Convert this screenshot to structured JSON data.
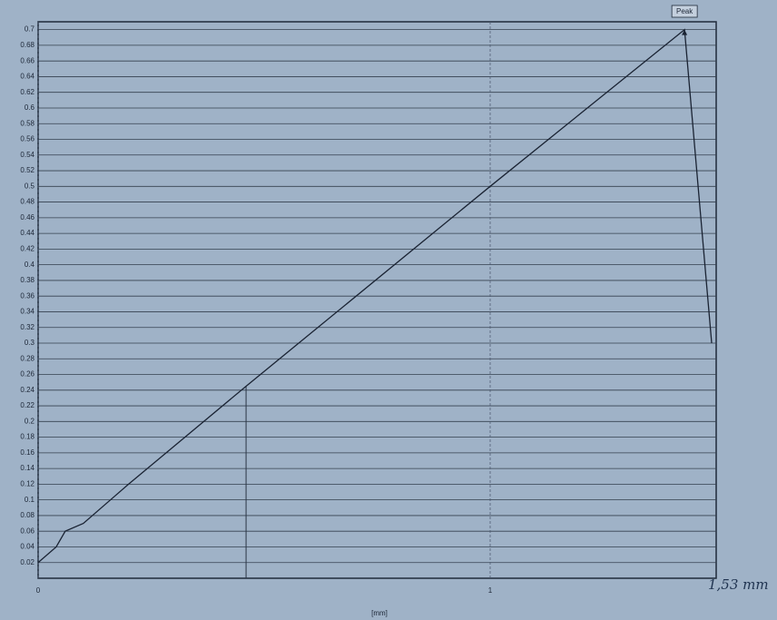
{
  "chart_data": {
    "type": "line",
    "annotations": {
      "peak": "Peak",
      "handwritten": "1,53 mm"
    },
    "x_label": "[mm]",
    "x": [
      0,
      0.04,
      0.06,
      0.1,
      0.2,
      0.46,
      1.0,
      1.43,
      1.49
    ],
    "series": [
      {
        "color": "#1a2333",
        "values": [
          0.02,
          0.04,
          0.06,
          0.07,
          0.12,
          0.245,
          0.5,
          0.7,
          0.3
        ]
      }
    ],
    "vlines": [
      0.46
    ],
    "xlim": [
      0,
      1.5
    ],
    "ylim": [
      0,
      0.71
    ],
    "xticks": [
      0,
      1
    ],
    "yticks": [
      0.02,
      0.04,
      0.06,
      0.08,
      0.1,
      0.12,
      0.14,
      0.16,
      0.18,
      0.2,
      0.22,
      0.24,
      0.26,
      0.28,
      0.3,
      0.32,
      0.34,
      0.36,
      0.38,
      0.4,
      0.42,
      0.44,
      0.46,
      0.48,
      0.5,
      0.52,
      0.54,
      0.56,
      0.58,
      0.6,
      0.62,
      0.64,
      0.66,
      0.68,
      0.7
    ],
    "grid": true
  }
}
